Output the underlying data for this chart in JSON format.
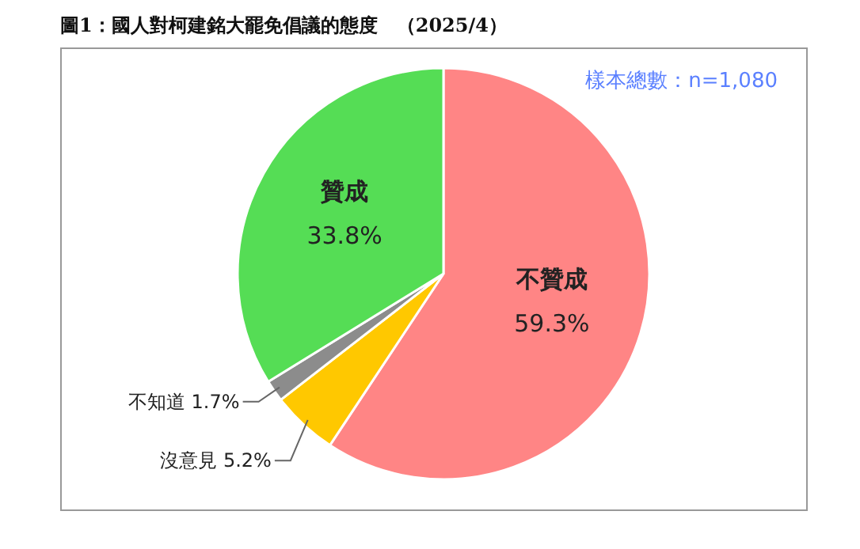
{
  "chart_data": {
    "type": "pie",
    "title": "圖1：國人對柯建銘大罷免倡議的態度　（2025/4）",
    "annotations": [
      "樣本總數：n=1,080"
    ],
    "categories": [
      "不贊成",
      "沒意見",
      "不知道",
      "贊成"
    ],
    "values": [
      59.3,
      5.2,
      1.7,
      33.8
    ],
    "colors": [
      "#ff8585",
      "#ffc800",
      "#8c8c8c",
      "#55dd55"
    ],
    "data_labels": true,
    "value_labels": [
      "59.3%",
      "5.2%",
      "1.7%",
      "33.8%"
    ]
  }
}
